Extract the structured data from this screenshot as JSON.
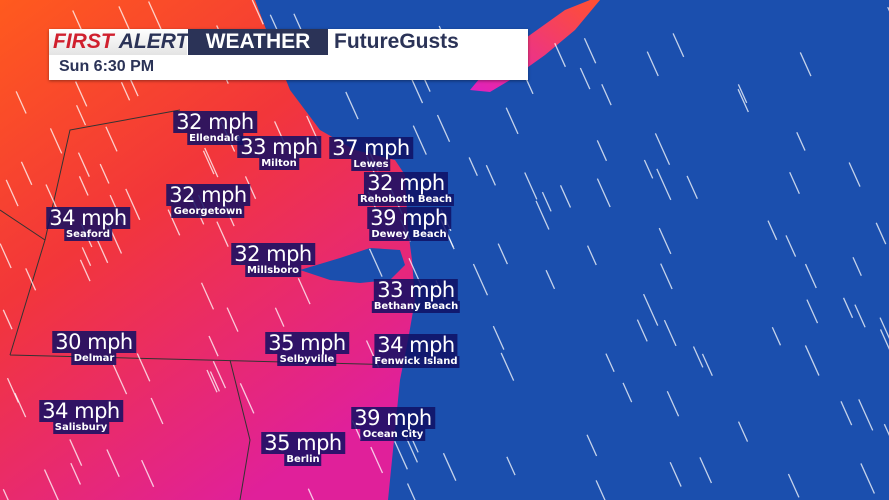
{
  "header": {
    "brand_first": "FIRST",
    "brand_alert": "ALERT",
    "brand_weather": "WEATHER",
    "product": "FutureGusts",
    "time": "Sun 6:30 PM"
  },
  "colors": {
    "ocean": "#1b4fae",
    "land_low": "#ff5a1e",
    "land_mid": "#f03040",
    "land_high": "#e020a0",
    "header_navy": "#2b3357",
    "brand_red": "#d0202e"
  },
  "locations": [
    {
      "city": "Ellendale",
      "gust": "32 mph"
    },
    {
      "city": "Milton",
      "gust": "33 mph"
    },
    {
      "city": "Lewes",
      "gust": "37 mph"
    },
    {
      "city": "Rehoboth Beach",
      "gust": "32 mph"
    },
    {
      "city": "Dewey Beach",
      "gust": "39 mph"
    },
    {
      "city": "Georgetown",
      "gust": "32 mph"
    },
    {
      "city": "Seaford",
      "gust": "34 mph"
    },
    {
      "city": "Millsboro",
      "gust": "32 mph"
    },
    {
      "city": "Bethany Beach",
      "gust": "33 mph"
    },
    {
      "city": "Delmar",
      "gust": "30 mph"
    },
    {
      "city": "Selbyville",
      "gust": "35 mph"
    },
    {
      "city": "Fenwick Island",
      "gust": "34 mph"
    },
    {
      "city": "Salisbury",
      "gust": "34 mph"
    },
    {
      "city": "Ocean City",
      "gust": "39 mph"
    },
    {
      "city": "Berlin",
      "gust": "35 mph"
    }
  ]
}
